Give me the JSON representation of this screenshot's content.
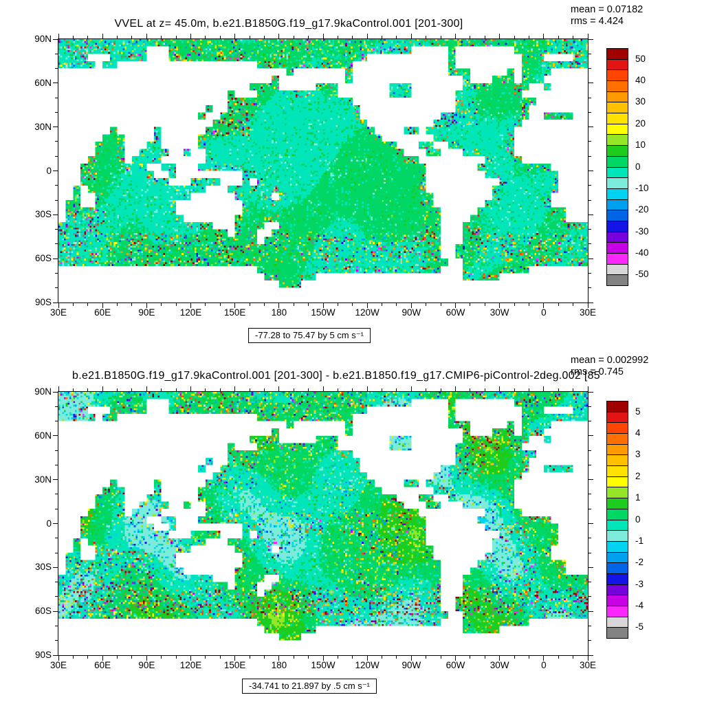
{
  "colorbar_colors": [
    "#A00000",
    "#E21414",
    "#FF4500",
    "#FF7000",
    "#FF9A00",
    "#FFC000",
    "#FFE200",
    "#FFFF00",
    "#96E628",
    "#1ECC1E",
    "#00D764",
    "#00E6B9",
    "#7DEBDC",
    "#00D2F0",
    "#00A0F0",
    "#0064E6",
    "#1414E6",
    "#7800DC",
    "#C800E6",
    "#FA28FA",
    "#D7D7D7",
    "#828282"
  ],
  "land_color": "#FFFFFF",
  "axes": {
    "x_labels": [
      "30E",
      "60E",
      "90E",
      "120E",
      "150E",
      "180",
      "150W",
      "120W",
      "90W",
      "60W",
      "30W",
      "0",
      "30E"
    ],
    "y_labels": [
      "90N",
      "60N",
      "30N",
      "0",
      "30S",
      "60S",
      "90S"
    ]
  },
  "panels": [
    {
      "title": "VVEL at z=  45.0m, b.e21.B1850G.f19_g17.9kaControl.001 [201-300]",
      "mean": "mean = 0.07182",
      "rms": "rms = 4.424",
      "range": "-77.28 to 75.47 by 5 cm s⁻¹",
      "colorbar_labels": [
        "50",
        "40",
        "30",
        "20",
        "10",
        "0",
        "-10",
        "-20",
        "-30",
        "-40",
        "-50"
      ]
    },
    {
      "title": "b.e21.B1850G.f19_g17.9kaControl.001 [201-300] - b.e21.B1850.f19_g17.CMIP6-piControl-2deg.002 [85",
      "mean": "mean = 0.002992",
      "rms": "rms = 0.745",
      "range": "-34.741 to 21.897 by .5 cm s⁻¹",
      "colorbar_labels": [
        "5",
        "4",
        "3",
        "2",
        "1",
        "0",
        "-1",
        "-2",
        "-3",
        "-4",
        "-5"
      ]
    }
  ],
  "chart_data": [
    {
      "type": "heatmap",
      "title": "VVEL at z=  45.0m, b.e21.B1850G.f19_g17.9kaControl.001 [201-300]",
      "variable": "VVEL",
      "depth": "45.0m",
      "units": "cm s⁻¹",
      "mean": 0.07182,
      "rms": 4.424,
      "data_min": -77.28,
      "data_max": 75.47,
      "contour_interval": 5,
      "levels": [
        -50,
        -45,
        -40,
        -35,
        -30,
        -25,
        -20,
        -15,
        -10,
        -5,
        0,
        5,
        10,
        15,
        20,
        25,
        30,
        35,
        40,
        45,
        50
      ],
      "x_tick_labels": [
        "30E",
        "60E",
        "90E",
        "120E",
        "150E",
        "180",
        "150W",
        "120W",
        "90W",
        "60W",
        "30W",
        "0",
        "30E"
      ],
      "y_tick_labels": [
        "90N",
        "60N",
        "30N",
        "0",
        "30S",
        "60S",
        "90S"
      ],
      "projection": "global lat-lon map, land masked white",
      "legend_position": "right",
      "grid": false
    },
    {
      "type": "heatmap",
      "title": "b.e21.B1850G.f19_g17.9kaControl.001 [201-300] - b.e21.B1850.f19_g17.CMIP6-piControl-2deg.002 [85",
      "variable": "VVEL difference",
      "units": "cm s⁻¹",
      "mean": 0.002992,
      "rms": 0.745,
      "data_min": -34.741,
      "data_max": 21.897,
      "contour_interval": 0.5,
      "levels": [
        -5,
        -4.5,
        -4,
        -3.5,
        -3,
        -2.5,
        -2,
        -1.5,
        -1,
        -0.5,
        0,
        0.5,
        1,
        1.5,
        2,
        2.5,
        3,
        3.5,
        4,
        4.5,
        5
      ],
      "x_tick_labels": [
        "30E",
        "60E",
        "90E",
        "120E",
        "150E",
        "180",
        "150W",
        "120W",
        "90W",
        "60W",
        "30W",
        "0",
        "30E"
      ],
      "y_tick_labels": [
        "90N",
        "60N",
        "30N",
        "0",
        "30S",
        "60S",
        "90S"
      ],
      "projection": "global lat-lon map, land masked white",
      "legend_position": "right",
      "grid": false
    }
  ]
}
